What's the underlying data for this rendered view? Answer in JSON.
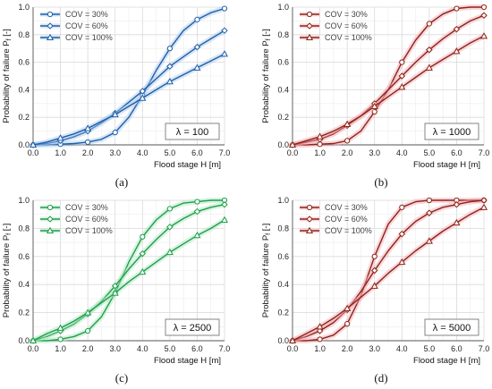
{
  "chart_data": [
    {
      "type": "line",
      "panel_label": "(a)",
      "lambda_label": "λ = 100",
      "xlabel": "Flood stage   H   [m]",
      "ylabel": "Probability of failure   P",
      "ylabel_sub": "f",
      "ylabel_unit": "[-]",
      "xlim": [
        0,
        7
      ],
      "ylim": [
        0,
        1
      ],
      "xticks": [
        "0.0",
        "1.0",
        "2.0",
        "3.0",
        "4.0",
        "5.0",
        "6.0",
        "7.0"
      ],
      "yticks": [
        "0.0",
        "0.2",
        "0.4",
        "0.6",
        "0.8",
        "1.0"
      ],
      "grid": true,
      "legend_position": "top-left",
      "colors": {
        "line": "#1f5fa8",
        "glow": "#a6c8ee"
      },
      "series": [
        {
          "name": "COV = 30%",
          "marker": "circle",
          "x": [
            0,
            0.5,
            1,
            1.5,
            2,
            2.5,
            3,
            3.5,
            4,
            4.5,
            5,
            5.5,
            6,
            6.5,
            7
          ],
          "values": [
            0.0,
            0.0,
            0.005,
            0.01,
            0.02,
            0.04,
            0.09,
            0.2,
            0.36,
            0.54,
            0.7,
            0.83,
            0.91,
            0.96,
            0.99
          ]
        },
        {
          "name": "COV = 60%",
          "marker": "diamond",
          "x": [
            0,
            0.5,
            1,
            1.5,
            2,
            2.5,
            3,
            3.5,
            4,
            4.5,
            5,
            5.5,
            6,
            6.5,
            7
          ],
          "values": [
            0.0,
            0.01,
            0.03,
            0.06,
            0.1,
            0.16,
            0.23,
            0.31,
            0.39,
            0.48,
            0.57,
            0.64,
            0.71,
            0.77,
            0.83
          ]
        },
        {
          "name": "COV = 100%",
          "marker": "triangle",
          "x": [
            0,
            0.5,
            1,
            1.5,
            2,
            2.5,
            3,
            3.5,
            4,
            4.5,
            5,
            5.5,
            6,
            6.5,
            7
          ],
          "values": [
            0.0,
            0.02,
            0.05,
            0.08,
            0.12,
            0.17,
            0.22,
            0.28,
            0.34,
            0.4,
            0.46,
            0.51,
            0.56,
            0.61,
            0.66
          ]
        }
      ]
    },
    {
      "type": "line",
      "panel_label": "(b)",
      "lambda_label": "λ = 1000",
      "xlabel": "Flood stage   H   [m]",
      "ylabel": "Probability of failure   P",
      "ylabel_sub": "f",
      "ylabel_unit": "[-]",
      "xlim": [
        0,
        7
      ],
      "ylim": [
        0,
        1
      ],
      "xticks": [
        "0.0",
        "1.0",
        "2.0",
        "3.0",
        "4.0",
        "5.0",
        "6.0",
        "7.0"
      ],
      "yticks": [
        "0.0",
        "0.2",
        "0.4",
        "0.6",
        "0.8",
        "1.0"
      ],
      "grid": true,
      "legend_position": "top-left",
      "colors": {
        "line": "#8c2414",
        "glow": "#f2a6b4"
      },
      "series": [
        {
          "name": "COV = 30%",
          "marker": "circle",
          "x": [
            0,
            0.5,
            1,
            1.5,
            2,
            2.5,
            3,
            3.5,
            4,
            4.5,
            5,
            5.5,
            6,
            6.5,
            7
          ],
          "values": [
            0.0,
            0.0,
            0.005,
            0.01,
            0.03,
            0.1,
            0.24,
            0.4,
            0.6,
            0.76,
            0.88,
            0.95,
            0.99,
            1.0,
            1.0
          ]
        },
        {
          "name": "COV = 60%",
          "marker": "diamond",
          "x": [
            0,
            0.5,
            1,
            1.5,
            2,
            2.5,
            3,
            3.5,
            4,
            4.5,
            5,
            5.5,
            6,
            6.5,
            7
          ],
          "values": [
            0.0,
            0.02,
            0.04,
            0.08,
            0.14,
            0.21,
            0.3,
            0.4,
            0.5,
            0.6,
            0.69,
            0.77,
            0.84,
            0.9,
            0.94
          ]
        },
        {
          "name": "COV = 100%",
          "marker": "triangle",
          "x": [
            0,
            0.5,
            1,
            1.5,
            2,
            2.5,
            3,
            3.5,
            4,
            4.5,
            5,
            5.5,
            6,
            6.5,
            7
          ],
          "values": [
            0.0,
            0.03,
            0.06,
            0.1,
            0.15,
            0.21,
            0.28,
            0.35,
            0.42,
            0.49,
            0.56,
            0.62,
            0.68,
            0.74,
            0.79
          ]
        }
      ]
    },
    {
      "type": "line",
      "panel_label": "(c)",
      "lambda_label": "λ = 2500",
      "xlabel": "Flood stage   H   [m]",
      "ylabel": "Probability of failure   P",
      "ylabel_sub": "f",
      "ylabel_unit": "[-]",
      "xlim": [
        0,
        7
      ],
      "ylim": [
        0,
        1
      ],
      "xticks": [
        "0.0",
        "1.0",
        "2.0",
        "3.0",
        "4.0",
        "5.0",
        "6.0",
        "7.0"
      ],
      "yticks": [
        "0.0",
        "0.2",
        "0.4",
        "0.6",
        "0.8",
        "1.0"
      ],
      "grid": true,
      "legend_position": "top-left",
      "colors": {
        "line": "#1f9e4a",
        "glow": "#a9e4bd"
      },
      "series": [
        {
          "name": "COV = 30%",
          "marker": "circle",
          "x": [
            0,
            0.5,
            1,
            1.5,
            2,
            2.5,
            3,
            3.5,
            4,
            4.5,
            5,
            5.5,
            6,
            6.5,
            7
          ],
          "values": [
            0.0,
            0.0,
            0.01,
            0.03,
            0.07,
            0.17,
            0.34,
            0.56,
            0.74,
            0.86,
            0.94,
            0.98,
            0.99,
            1.0,
            1.0
          ]
        },
        {
          "name": "COV = 60%",
          "marker": "diamond",
          "x": [
            0,
            0.5,
            1,
            1.5,
            2,
            2.5,
            3,
            3.5,
            4,
            4.5,
            5,
            5.5,
            6,
            6.5,
            7
          ],
          "values": [
            0.0,
            0.03,
            0.07,
            0.12,
            0.19,
            0.28,
            0.39,
            0.51,
            0.62,
            0.72,
            0.81,
            0.87,
            0.92,
            0.95,
            0.97
          ]
        },
        {
          "name": "COV = 100%",
          "marker": "triangle",
          "x": [
            0,
            0.5,
            1,
            1.5,
            2,
            2.5,
            3,
            3.5,
            4,
            4.5,
            5,
            5.5,
            6,
            6.5,
            7
          ],
          "values": [
            0.0,
            0.05,
            0.09,
            0.14,
            0.2,
            0.27,
            0.34,
            0.42,
            0.49,
            0.56,
            0.63,
            0.69,
            0.75,
            0.8,
            0.86
          ]
        }
      ]
    },
    {
      "type": "line",
      "panel_label": "(d)",
      "lambda_label": "λ = 5000",
      "xlabel": "Flood stage   H   [m]",
      "ylabel": "Probability of failure   P",
      "ylabel_sub": "f",
      "ylabel_unit": "[-]",
      "xlim": [
        0,
        7
      ],
      "ylim": [
        0,
        1
      ],
      "xticks": [
        "0.0",
        "1.0",
        "2.0",
        "3.0",
        "4.0",
        "5.0",
        "6.0",
        "7.0"
      ],
      "yticks": [
        "0.0",
        "0.2",
        "0.4",
        "0.6",
        "0.8",
        "1.0"
      ],
      "grid": true,
      "legend_position": "top-left",
      "colors": {
        "line": "#8c2414",
        "glow": "#f2a6b4"
      },
      "series": [
        {
          "name": "COV = 30%",
          "marker": "circle",
          "x": [
            0,
            0.5,
            1,
            1.5,
            2,
            2.5,
            3,
            3.5,
            4,
            4.5,
            5,
            5.5,
            6,
            6.5,
            7
          ],
          "values": [
            0.0,
            0.0,
            0.01,
            0.04,
            0.12,
            0.32,
            0.6,
            0.83,
            0.95,
            0.99,
            1.0,
            1.0,
            1.0,
            1.0,
            1.0
          ]
        },
        {
          "name": "COV = 60%",
          "marker": "diamond",
          "x": [
            0,
            0.5,
            1,
            1.5,
            2,
            2.5,
            3,
            3.5,
            4,
            4.5,
            5,
            5.5,
            6,
            6.5,
            7
          ],
          "values": [
            0.0,
            0.03,
            0.07,
            0.13,
            0.22,
            0.35,
            0.5,
            0.64,
            0.76,
            0.85,
            0.91,
            0.95,
            0.97,
            0.99,
            1.0
          ]
        },
        {
          "name": "COV = 100%",
          "marker": "triangle",
          "x": [
            0,
            0.5,
            1,
            1.5,
            2,
            2.5,
            3,
            3.5,
            4,
            4.5,
            5,
            5.5,
            6,
            6.5,
            7
          ],
          "values": [
            0.0,
            0.05,
            0.1,
            0.16,
            0.23,
            0.31,
            0.39,
            0.48,
            0.56,
            0.64,
            0.71,
            0.78,
            0.84,
            0.9,
            0.95
          ]
        }
      ]
    }
  ]
}
